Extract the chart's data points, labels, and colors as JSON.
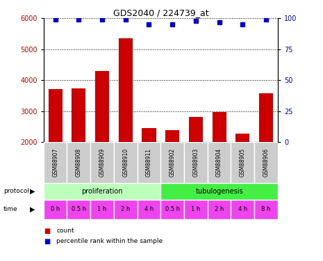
{
  "title": "GDS2040 / 224739_at",
  "samples": [
    "GSM88907",
    "GSM88908",
    "GSM88909",
    "GSM88910",
    "GSM88911",
    "GSM88902",
    "GSM88903",
    "GSM88904",
    "GSM88905",
    "GSM88906"
  ],
  "counts": [
    3720,
    3740,
    4300,
    5350,
    2450,
    2400,
    2820,
    2970,
    2270,
    3580
  ],
  "percentile_ranks": [
    99,
    99,
    99,
    99,
    95,
    95,
    98,
    97,
    95,
    99
  ],
  "bar_color": "#cc0000",
  "dot_color": "#0000cc",
  "ylim_left": [
    2000,
    6000
  ],
  "ylim_right": [
    0,
    100
  ],
  "yticks_left": [
    2000,
    3000,
    4000,
    5000,
    6000
  ],
  "yticks_right": [
    0,
    25,
    50,
    75,
    100
  ],
  "time_labels": [
    "0 h",
    "0.5 h",
    "1 h",
    "2 h",
    "4 h",
    "0.5 h",
    "1 h",
    "2 h",
    "4 h",
    "8 h"
  ],
  "time_color": "#ee44ee",
  "sample_bg_color": "#cccccc",
  "prol_color": "#bbffbb",
  "tub_color": "#44ee44",
  "legend_count_color": "#cc0000",
  "legend_dot_color": "#0000cc"
}
